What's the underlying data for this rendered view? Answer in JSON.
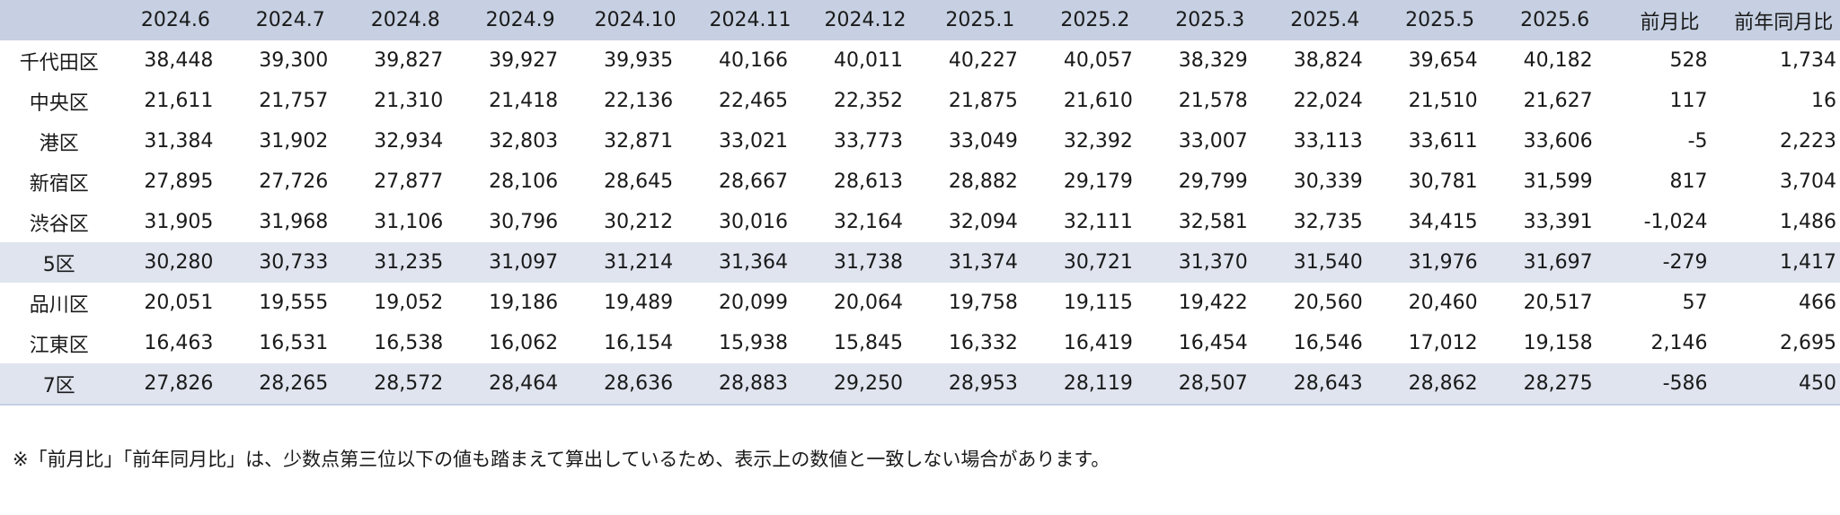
{
  "table": {
    "columns": [
      "",
      "2024.6",
      "2024.7",
      "2024.8",
      "2024.9",
      "2024.10",
      "2024.11",
      "2024.12",
      "2025.1",
      "2025.2",
      "2025.3",
      "2025.4",
      "2025.5",
      "2025.6",
      "前月比",
      "前年同月比"
    ],
    "rows": [
      {
        "name": "千代田区",
        "summary": false,
        "values": [
          "38,448",
          "39,300",
          "39,827",
          "39,927",
          "39,935",
          "40,166",
          "40,011",
          "40,227",
          "40,057",
          "38,329",
          "38,824",
          "39,654",
          "40,182",
          "528",
          "1,734"
        ]
      },
      {
        "name": "中央区",
        "summary": false,
        "values": [
          "21,611",
          "21,757",
          "21,310",
          "21,418",
          "22,136",
          "22,465",
          "22,352",
          "21,875",
          "21,610",
          "21,578",
          "22,024",
          "21,510",
          "21,627",
          "117",
          "16"
        ]
      },
      {
        "name": "港区",
        "summary": false,
        "values": [
          "31,384",
          "31,902",
          "32,934",
          "32,803",
          "32,871",
          "33,021",
          "33,773",
          "33,049",
          "32,392",
          "33,007",
          "33,113",
          "33,611",
          "33,606",
          "-5",
          "2,223"
        ]
      },
      {
        "name": "新宿区",
        "summary": false,
        "values": [
          "27,895",
          "27,726",
          "27,877",
          "28,106",
          "28,645",
          "28,667",
          "28,613",
          "28,882",
          "29,179",
          "29,799",
          "30,339",
          "30,781",
          "31,599",
          "817",
          "3,704"
        ]
      },
      {
        "name": "渋谷区",
        "summary": false,
        "values": [
          "31,905",
          "31,968",
          "31,106",
          "30,796",
          "30,212",
          "30,016",
          "32,164",
          "32,094",
          "32,111",
          "32,581",
          "32,735",
          "34,415",
          "33,391",
          "-1,024",
          "1,486"
        ]
      },
      {
        "name": "5区",
        "summary": true,
        "values": [
          "30,280",
          "30,733",
          "31,235",
          "31,097",
          "31,214",
          "31,364",
          "31,738",
          "31,374",
          "30,721",
          "31,370",
          "31,540",
          "31,976",
          "31,697",
          "-279",
          "1,417"
        ]
      },
      {
        "name": "品川区",
        "summary": false,
        "values": [
          "20,051",
          "19,555",
          "19,052",
          "19,186",
          "19,489",
          "20,099",
          "20,064",
          "19,758",
          "19,115",
          "19,422",
          "20,560",
          "20,460",
          "20,517",
          "57",
          "466"
        ]
      },
      {
        "name": "江東区",
        "summary": false,
        "values": [
          "16,463",
          "16,531",
          "16,538",
          "16,062",
          "16,154",
          "15,938",
          "15,845",
          "16,332",
          "16,419",
          "16,454",
          "16,546",
          "17,012",
          "19,158",
          "2,146",
          "2,695"
        ]
      },
      {
        "name": "7区",
        "summary": true,
        "values": [
          "27,826",
          "28,265",
          "28,572",
          "28,464",
          "28,636",
          "28,883",
          "29,250",
          "28,953",
          "28,119",
          "28,507",
          "28,643",
          "28,862",
          "28,275",
          "-586",
          "450"
        ]
      }
    ]
  },
  "footnote": "※「前月比」「前年同月比」は、少数点第三位以下の値も踏まえて算出しているため、表示上の数値と一致しない場合があります。",
  "colors": {
    "header_bg": "#c6d0e2",
    "summary_row_bg": "#dfe4ef",
    "text": "#1a1a1a"
  }
}
